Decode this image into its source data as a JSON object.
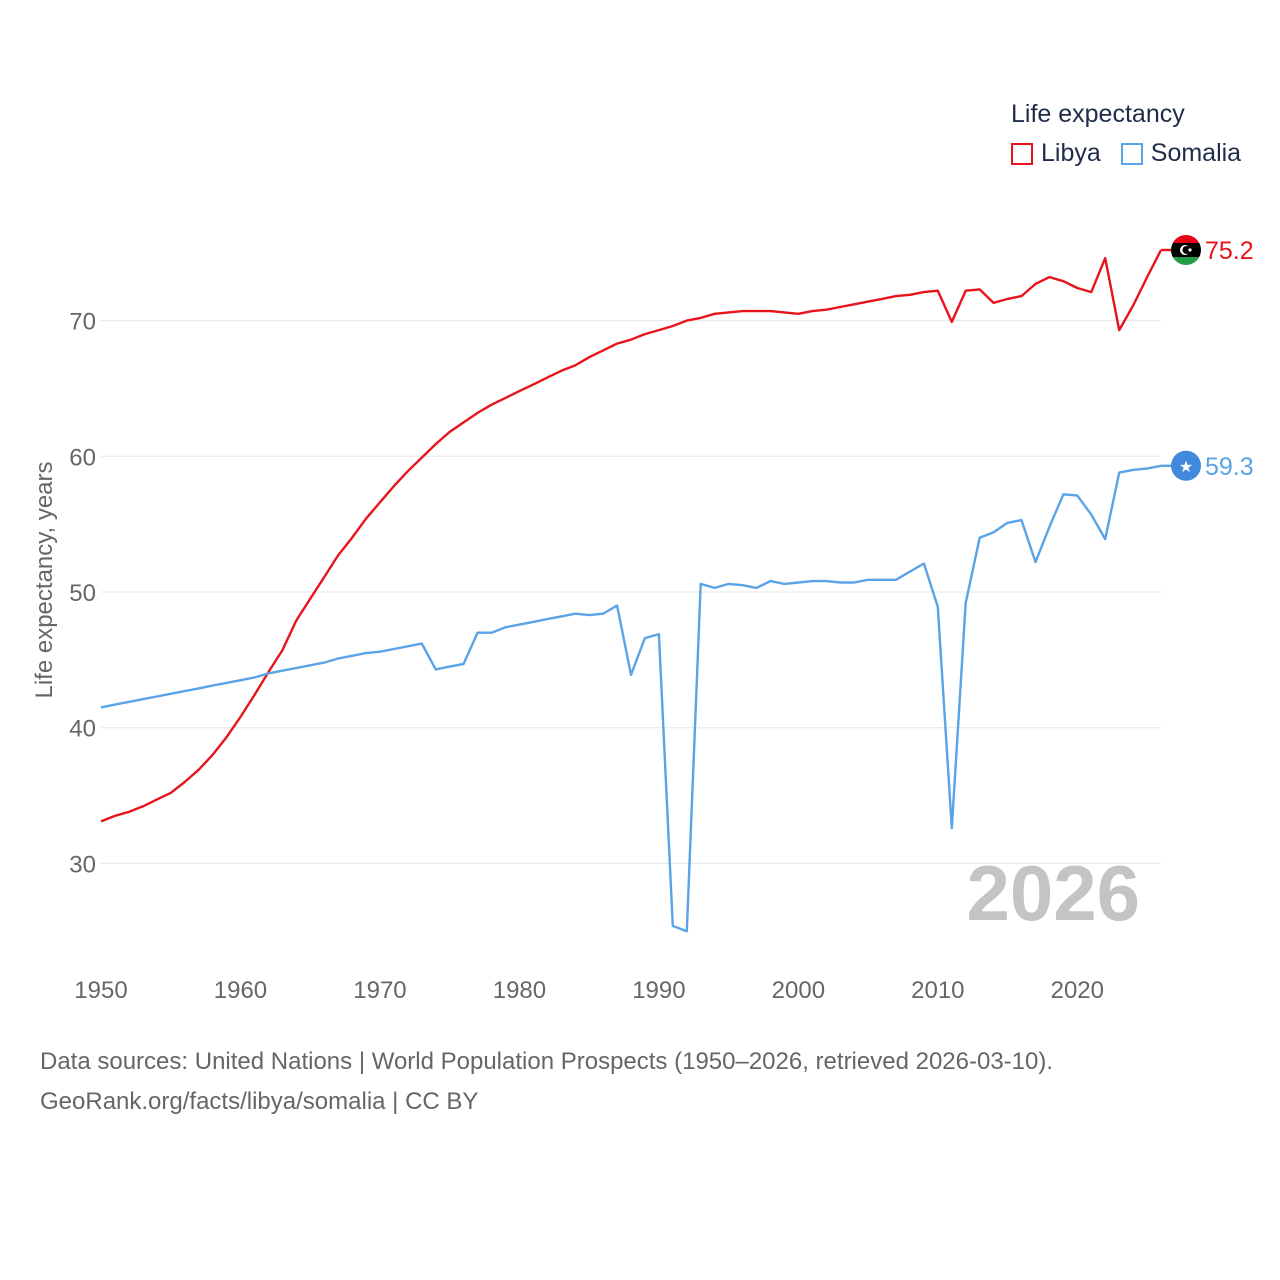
{
  "legend": {
    "title": "Life expectancy"
  },
  "footer": {
    "line1": "Data sources: United Nations | World Population Prospects (1950–2026, retrieved 2026-03-10).",
    "line2": "GeoRank.org/facts/libya/somalia | CC BY"
  },
  "chart_data": {
    "type": "line",
    "title": "",
    "xlabel": "",
    "ylabel": "Life expectancy, years",
    "year_watermark": "2026",
    "xlim": [
      1950,
      2026
    ],
    "ylim": [
      22,
      78
    ],
    "xticks": [
      1950,
      1960,
      1970,
      1980,
      1990,
      2000,
      2010,
      2020
    ],
    "yticks": [
      30,
      40,
      50,
      60,
      70
    ],
    "grid": true,
    "legend_position": "top-right",
    "series": [
      {
        "name": "Libya",
        "color": "#e8141b",
        "end_label": "75.2",
        "flag_icon": "libya-flag-icon",
        "x": [
          1950,
          1951,
          1952,
          1953,
          1954,
          1955,
          1956,
          1957,
          1958,
          1959,
          1960,
          1961,
          1962,
          1963,
          1964,
          1965,
          1966,
          1967,
          1968,
          1969,
          1970,
          1971,
          1972,
          1973,
          1974,
          1975,
          1976,
          1977,
          1978,
          1979,
          1980,
          1981,
          1982,
          1983,
          1984,
          1985,
          1986,
          1987,
          1988,
          1989,
          1990,
          1991,
          1992,
          1993,
          1994,
          1995,
          1996,
          1997,
          1998,
          1999,
          2000,
          2001,
          2002,
          2003,
          2004,
          2005,
          2006,
          2007,
          2008,
          2009,
          2010,
          2011,
          2012,
          2013,
          2014,
          2015,
          2016,
          2017,
          2018,
          2019,
          2020,
          2021,
          2022,
          2023,
          2024,
          2025,
          2026
        ],
        "values": [
          33.1,
          33.5,
          33.8,
          34.2,
          34.7,
          35.2,
          36.0,
          36.9,
          38.0,
          39.3,
          40.8,
          42.4,
          44.1,
          45.7,
          47.9,
          49.5,
          51.1,
          52.7,
          54.0,
          55.4,
          56.6,
          57.8,
          58.9,
          59.9,
          60.9,
          61.8,
          62.5,
          63.2,
          63.8,
          64.3,
          64.8,
          65.3,
          65.8,
          66.3,
          66.7,
          67.3,
          67.8,
          68.3,
          68.6,
          69.0,
          69.3,
          69.6,
          70.0,
          70.2,
          70.5,
          70.6,
          70.7,
          70.7,
          70.7,
          70.6,
          70.5,
          70.7,
          70.8,
          71.0,
          71.2,
          71.4,
          71.6,
          71.8,
          71.9,
          72.1,
          72.2,
          69.9,
          72.2,
          72.3,
          71.3,
          71.6,
          71.8,
          72.7,
          73.2,
          72.9,
          72.4,
          72.1,
          74.6,
          69.3,
          71.1,
          73.2,
          75.2
        ]
      },
      {
        "name": "Somalia",
        "color": "#5aa3e6",
        "end_label": "59.3",
        "flag_icon": "somalia-flag-icon",
        "x": [
          1950,
          1951,
          1952,
          1953,
          1954,
          1955,
          1956,
          1957,
          1958,
          1959,
          1960,
          1961,
          1962,
          1963,
          1964,
          1965,
          1966,
          1967,
          1968,
          1969,
          1970,
          1971,
          1972,
          1973,
          1974,
          1975,
          1976,
          1977,
          1978,
          1979,
          1980,
          1981,
          1982,
          1983,
          1984,
          1985,
          1986,
          1987,
          1988,
          1989,
          1990,
          1991,
          1992,
          1993,
          1994,
          1995,
          1996,
          1997,
          1998,
          1999,
          2000,
          2001,
          2002,
          2003,
          2004,
          2005,
          2006,
          2007,
          2008,
          2009,
          2010,
          2011,
          2012,
          2013,
          2014,
          2015,
          2016,
          2017,
          2018,
          2019,
          2020,
          2021,
          2022,
          2023,
          2024,
          2025,
          2026
        ],
        "values": [
          41.5,
          41.7,
          41.9,
          42.1,
          42.3,
          42.5,
          42.7,
          42.9,
          43.1,
          43.3,
          43.5,
          43.7,
          44.0,
          44.2,
          44.4,
          44.6,
          44.8,
          45.1,
          45.3,
          45.5,
          45.6,
          45.8,
          46.0,
          46.2,
          44.3,
          44.5,
          44.7,
          47.0,
          47.0,
          47.4,
          47.6,
          47.8,
          48.0,
          48.2,
          48.4,
          48.3,
          48.4,
          49.0,
          43.9,
          46.6,
          46.9,
          25.4,
          25.0,
          50.6,
          50.3,
          50.6,
          50.5,
          50.3,
          50.8,
          50.6,
          50.7,
          50.8,
          50.8,
          50.7,
          50.7,
          50.9,
          50.9,
          50.9,
          51.5,
          52.1,
          48.9,
          32.6,
          49.2,
          54.0,
          54.4,
          55.1,
          55.3,
          52.2,
          54.8,
          57.2,
          57.1,
          55.7,
          53.9,
          58.8,
          59.0,
          59.1,
          59.3
        ]
      }
    ]
  }
}
